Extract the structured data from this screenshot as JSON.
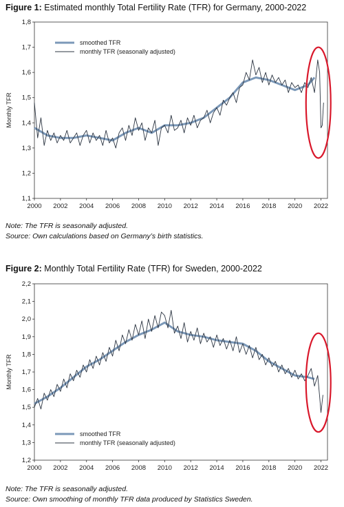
{
  "figure1": {
    "label": "Figure 1:",
    "title": "Estimated monthly Total Fertility Rate (TFR) for Germany, 2000-2022",
    "note": "Note: The TFR is seasonally adjusted.",
    "source": "Source: Own calculations based on Germany’s birth statistics."
  },
  "figure2": {
    "label": "Figure 2:",
    "title": "Monthly Total Fertility Rate (TFR) for Sweden, 2000-2022",
    "note": "Note: The TFR is seasonally adjusted.",
    "source": "Source: Own smoothing of monthly TFR data produced by Statistics Sweden."
  },
  "colors": {
    "smoothed": "#7b98b8",
    "monthly": "#2b3441",
    "highlight": "#d9182b"
  },
  "chart_data": [
    {
      "type": "line",
      "ylabel": "Monthly TFR",
      "xlabel": "",
      "xlim": [
        2000,
        2022.5
      ],
      "ylim": [
        1.1,
        1.8
      ],
      "xticks": [
        "2000",
        "2002",
        "2004",
        "2006",
        "2008",
        "2010",
        "2012",
        "2014",
        "2016",
        "2018",
        "2020",
        "2022"
      ],
      "yticks": [
        "1,1",
        "1,2",
        "1,3",
        "1,4",
        "1,5",
        "1,6",
        "1,7",
        "1,8"
      ],
      "legend_position": "top-left",
      "highlight": {
        "shape": "ellipse",
        "center": [
          2021.8,
          1.48
        ],
        "rx": 0.95,
        "ry": 0.22
      },
      "series": [
        {
          "name": "smoothed TFR",
          "style": "thick",
          "x": [
            2000,
            2001,
            2002,
            2003,
            2004,
            2005,
            2006,
            2007,
            2008,
            2009,
            2010,
            2011,
            2012,
            2013,
            2014,
            2015,
            2016,
            2017,
            2018,
            2019,
            2020,
            2021,
            2021.5
          ],
          "y": [
            1.38,
            1.35,
            1.34,
            1.34,
            1.35,
            1.34,
            1.33,
            1.36,
            1.38,
            1.36,
            1.39,
            1.39,
            1.4,
            1.42,
            1.46,
            1.5,
            1.56,
            1.58,
            1.57,
            1.55,
            1.53,
            1.55,
            1.58
          ]
        },
        {
          "name": "monthly TFR (seasonally adjusted)",
          "style": "thin",
          "x": [
            2000,
            2000.25,
            2000.5,
            2000.75,
            2001,
            2001.25,
            2001.5,
            2001.75,
            2002,
            2002.25,
            2002.5,
            2002.75,
            2003,
            2003.25,
            2003.5,
            2003.75,
            2004,
            2004.25,
            2004.5,
            2004.75,
            2005,
            2005.25,
            2005.5,
            2005.75,
            2006,
            2006.25,
            2006.5,
            2006.75,
            2007,
            2007.25,
            2007.5,
            2007.75,
            2008,
            2008.25,
            2008.5,
            2008.75,
            2009,
            2009.25,
            2009.5,
            2009.75,
            2010,
            2010.25,
            2010.5,
            2010.75,
            2011,
            2011.25,
            2011.5,
            2011.75,
            2012,
            2012.25,
            2012.5,
            2012.75,
            2013,
            2013.25,
            2013.5,
            2013.75,
            2014,
            2014.25,
            2014.5,
            2014.75,
            2015,
            2015.25,
            2015.5,
            2015.75,
            2016,
            2016.25,
            2016.5,
            2016.75,
            2017,
            2017.25,
            2017.5,
            2017.75,
            2018,
            2018.25,
            2018.5,
            2018.75,
            2019,
            2019.25,
            2019.5,
            2019.75,
            2020,
            2020.25,
            2020.5,
            2020.75,
            2021,
            2021.25,
            2021.5,
            2021.75,
            2021.9,
            2022,
            2022.1,
            2022.2
          ],
          "y": [
            1.48,
            1.34,
            1.42,
            1.31,
            1.37,
            1.33,
            1.36,
            1.32,
            1.35,
            1.33,
            1.37,
            1.32,
            1.34,
            1.36,
            1.31,
            1.35,
            1.37,
            1.32,
            1.36,
            1.33,
            1.35,
            1.31,
            1.37,
            1.32,
            1.34,
            1.3,
            1.36,
            1.38,
            1.33,
            1.39,
            1.35,
            1.42,
            1.37,
            1.4,
            1.33,
            1.38,
            1.36,
            1.41,
            1.31,
            1.38,
            1.39,
            1.36,
            1.43,
            1.37,
            1.38,
            1.41,
            1.36,
            1.42,
            1.39,
            1.43,
            1.38,
            1.41,
            1.42,
            1.45,
            1.4,
            1.44,
            1.46,
            1.43,
            1.49,
            1.47,
            1.5,
            1.52,
            1.48,
            1.54,
            1.55,
            1.6,
            1.57,
            1.65,
            1.59,
            1.62,
            1.56,
            1.6,
            1.55,
            1.59,
            1.56,
            1.58,
            1.55,
            1.57,
            1.52,
            1.56,
            1.54,
            1.55,
            1.52,
            1.56,
            1.54,
            1.58,
            1.52,
            1.65,
            1.6,
            1.38,
            1.39,
            1.48
          ]
        }
      ]
    },
    {
      "type": "line",
      "ylabel": "Monthly TFR",
      "xlabel": "",
      "xlim": [
        2000,
        2022.5
      ],
      "ylim": [
        1.2,
        2.2
      ],
      "xticks": [
        "2000",
        "2002",
        "2004",
        "2006",
        "2008",
        "2010",
        "2012",
        "2014",
        "2016",
        "2018",
        "2020",
        "2022"
      ],
      "yticks": [
        "1,2",
        "1,3",
        "1,4",
        "1,5",
        "1,6",
        "1,7",
        "1,8",
        "1,9",
        "2,0",
        "2,1",
        "2,2"
      ],
      "legend_position": "bottom-left",
      "highlight": {
        "shape": "ellipse",
        "center": [
          2021.8,
          1.64
        ],
        "rx": 0.95,
        "ry": 0.28
      },
      "series": [
        {
          "name": "smoothed TFR",
          "style": "thick",
          "x": [
            2000,
            2001,
            2002,
            2003,
            2004,
            2005,
            2006,
            2007,
            2008,
            2009,
            2010,
            2011,
            2012,
            2013,
            2014,
            2015,
            2016,
            2017,
            2018,
            2019,
            2020,
            2021,
            2021.5
          ],
          "y": [
            1.52,
            1.56,
            1.61,
            1.67,
            1.73,
            1.77,
            1.82,
            1.87,
            1.91,
            1.94,
            1.98,
            1.93,
            1.91,
            1.9,
            1.88,
            1.87,
            1.86,
            1.82,
            1.76,
            1.72,
            1.68,
            1.67,
            1.66
          ]
        },
        {
          "name": "monthly TFR (seasonally adjusted)",
          "style": "thin",
          "x": [
            2000,
            2000.25,
            2000.5,
            2000.75,
            2001,
            2001.25,
            2001.5,
            2001.75,
            2002,
            2002.25,
            2002.5,
            2002.75,
            2003,
            2003.25,
            2003.5,
            2003.75,
            2004,
            2004.25,
            2004.5,
            2004.75,
            2005,
            2005.25,
            2005.5,
            2005.75,
            2006,
            2006.25,
            2006.5,
            2006.75,
            2007,
            2007.25,
            2007.5,
            2007.75,
            2008,
            2008.25,
            2008.5,
            2008.75,
            2009,
            2009.25,
            2009.5,
            2009.75,
            2010,
            2010.25,
            2010.5,
            2010.75,
            2011,
            2011.25,
            2011.5,
            2011.75,
            2012,
            2012.25,
            2012.5,
            2012.75,
            2013,
            2013.25,
            2013.5,
            2013.75,
            2014,
            2014.25,
            2014.5,
            2014.75,
            2015,
            2015.25,
            2015.5,
            2015.75,
            2016,
            2016.25,
            2016.5,
            2016.75,
            2017,
            2017.25,
            2017.5,
            2017.75,
            2018,
            2018.25,
            2018.5,
            2018.75,
            2019,
            2019.25,
            2019.5,
            2019.75,
            2020,
            2020.25,
            2020.5,
            2020.75,
            2021,
            2021.25,
            2021.5,
            2021.75,
            2021.9,
            2022,
            2022.15
          ],
          "y": [
            1.5,
            1.55,
            1.49,
            1.58,
            1.54,
            1.6,
            1.56,
            1.63,
            1.59,
            1.66,
            1.61,
            1.69,
            1.65,
            1.71,
            1.67,
            1.74,
            1.7,
            1.77,
            1.72,
            1.79,
            1.74,
            1.81,
            1.76,
            1.84,
            1.79,
            1.88,
            1.82,
            1.91,
            1.86,
            1.94,
            1.88,
            1.97,
            1.91,
            1.99,
            1.89,
            2.0,
            1.93,
            2.02,
            1.95,
            2.04,
            2.02,
            1.95,
            2.05,
            1.92,
            1.96,
            1.89,
            1.98,
            1.87,
            1.93,
            1.88,
            1.95,
            1.86,
            1.92,
            1.87,
            1.9,
            1.84,
            1.91,
            1.85,
            1.89,
            1.83,
            1.88,
            1.82,
            1.9,
            1.81,
            1.86,
            1.8,
            1.85,
            1.78,
            1.84,
            1.77,
            1.8,
            1.74,
            1.78,
            1.73,
            1.76,
            1.7,
            1.74,
            1.69,
            1.72,
            1.67,
            1.71,
            1.66,
            1.69,
            1.65,
            1.68,
            1.72,
            1.62,
            1.68,
            1.56,
            1.47,
            1.57
          ]
        }
      ]
    }
  ]
}
